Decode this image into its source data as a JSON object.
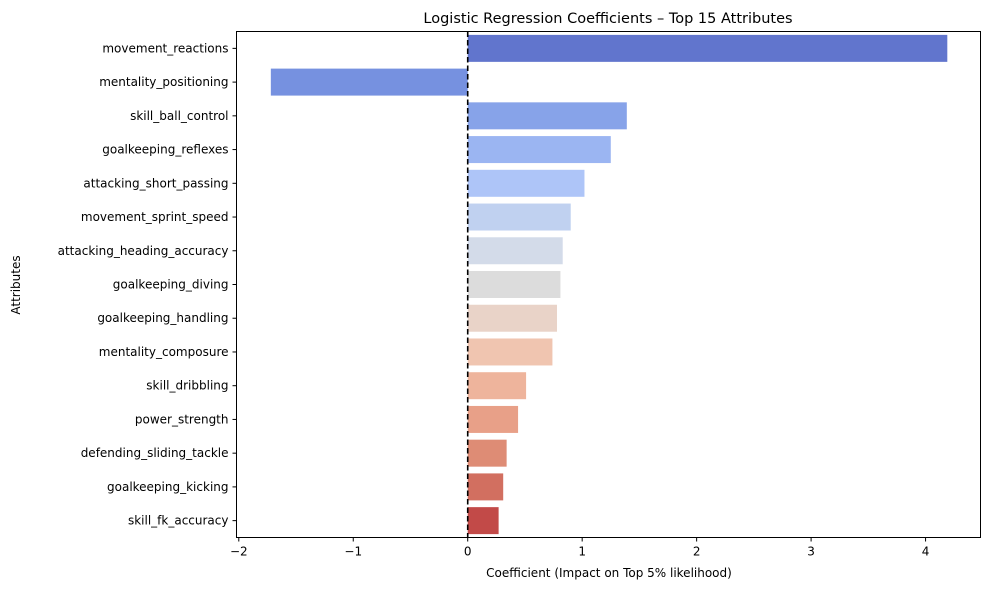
{
  "chart_data": {
    "type": "bar",
    "orientation": "horizontal",
    "title": "Logistic Regression Coefficients – Top 15 Attributes",
    "xlabel": "Coefficient (Impact on Top 5% likelihood)",
    "ylabel": "Attributes",
    "xlim": [
      -2.02,
      4.48
    ],
    "xticks": [
      -2,
      -1,
      0,
      1,
      2,
      3,
      4
    ],
    "xtick_labels": [
      "−2",
      "−1",
      "0",
      "1",
      "2",
      "3",
      "4"
    ],
    "reference_line": {
      "x": 0,
      "style": "dashed",
      "color": "#000000"
    },
    "grid": false,
    "legend": "none",
    "colormap": "coolwarm",
    "categories": [
      "movement_reactions",
      "mentality_positioning",
      "skill_ball_control",
      "goalkeeping_reflexes",
      "attacking_short_passing",
      "movement_sprint_speed",
      "attacking_heading_accuracy",
      "goalkeeping_diving",
      "goalkeeping_handling",
      "mentality_composure",
      "skill_dribbling",
      "power_strength",
      "defending_sliding_tackle",
      "goalkeeping_kicking",
      "skill_fk_accuracy"
    ],
    "values": [
      4.19,
      -1.72,
      1.39,
      1.25,
      1.02,
      0.9,
      0.83,
      0.81,
      0.78,
      0.74,
      0.51,
      0.44,
      0.34,
      0.31,
      0.27
    ],
    "colors": [
      "#6175cd",
      "#7691e0",
      "#87a3e9",
      "#9bb5f2",
      "#aec5f8",
      "#c0d1f0",
      "#d3dbe9",
      "#dcdcdc",
      "#e9d3c8",
      "#f0c5b0",
      "#eeb49c",
      "#e8a088",
      "#de8c75",
      "#d26f60",
      "#c24a48"
    ]
  }
}
